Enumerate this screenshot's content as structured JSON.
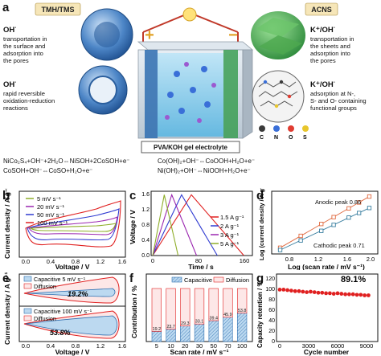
{
  "panel_a": {
    "letter": "a",
    "left_tag": "TMH/TMS",
    "right_tag": "ACNS",
    "left_top_ion": "OH",
    "left_top_text": [
      "transportation in",
      "the surface and",
      "adsorption into",
      "the pores"
    ],
    "left_bottom_ion": "OH",
    "left_bottom_text": [
      "rapid reversible",
      "oxidation-reduction",
      "reactions"
    ],
    "right_top_ion": "K⁺/OH",
    "right_top_text": [
      "transportation in",
      "the sheets and",
      "adsorption into",
      "the pores"
    ],
    "right_bottom_ion": "K⁺/OH",
    "right_bottom_text": [
      "adsorption at N-,",
      "S- and O- containing",
      "functional groups"
    ],
    "electrolyte_label": "PVA/KOH gel electrolyte",
    "plus_sign": "+",
    "minus_sign": "−",
    "element_legend": [
      "C",
      "N",
      "O",
      "S"
    ],
    "element_colors": [
      "#3a3a3a",
      "#3a6fd8",
      "#e03c31",
      "#e8c62c"
    ],
    "equations": [
      "NiCo₂S₄+OH⁻+2H₂O⇔NiSOH+2CoSOH+e⁻",
      "CoSOH+OH⁻⇔CoSO+H₂O+e⁻",
      "Co(OH)₂+OH⁻⇔CoOOH+H₂O+e⁻",
      "Ni(OH)₂+OH⁻⇔NiOOH+H₂O+e⁻"
    ]
  },
  "panel_b": {
    "letter": "b",
    "xlabel": "Voltage / V",
    "ylabel": "Current density / A g⁻¹",
    "xticks": [
      "0.0",
      "0.4",
      "0.8",
      "1.2",
      "1.6"
    ],
    "legend": [
      "5 mV s⁻¹",
      "20 mV s⁻¹",
      "50 mV s⁻¹",
      "100 mV s⁻¹"
    ]
  },
  "panel_c": {
    "letter": "c",
    "xlabel": "Time / s",
    "ylabel": "Voltage / V",
    "xticks": [
      "0",
      "80",
      "160"
    ],
    "yticks": [
      "0.0",
      "0.4",
      "0.8",
      "1.2",
      "1.6"
    ],
    "legend": [
      "1.5 A g⁻¹",
      "2 A g⁻¹",
      "3 A g⁻¹",
      "5 A g⁻¹"
    ]
  },
  "panel_d": {
    "letter": "d",
    "xlabel": "Log (scan rate / mV s⁻¹)",
    "ylabel": "Log (current density / A g⁻¹)",
    "xticks": [
      "0.8",
      "1.2",
      "1.6",
      "2.0"
    ],
    "anodic_label": "Anodic peak 0.86",
    "cathodic_label": "Cathodic peak 0.71"
  },
  "panel_e": {
    "letter": "e",
    "xlabel": "Voltage / V",
    "ylabel": "Current density / A g⁻¹",
    "xticks": [
      "0.0",
      "0.4",
      "0.8",
      "1.2",
      "1.6"
    ],
    "top_legend": [
      "Capacitive  5 mV s⁻¹",
      "Diffusion"
    ],
    "top_percent": "19.2%",
    "bottom_legend": [
      "Capacitive  100 mV s⁻¹",
      "Diffusion"
    ],
    "bottom_percent": "53.8%"
  },
  "panel_f": {
    "letter": "f",
    "xlabel": "Scan rate / mV s⁻¹",
    "ylabel": "Contribution / %",
    "legend": [
      "Capacitive",
      "Diffusion"
    ]
  },
  "panel_g": {
    "letter": "g",
    "xlabel": "Cycle number",
    "ylabel": "Capacity retention / %",
    "xticks": [
      "0",
      "3000",
      "6000",
      "9000"
    ],
    "yticks": [
      "0",
      "20",
      "40",
      "60",
      "80",
      "100",
      "120"
    ],
    "annotation": "89.1%"
  },
  "chart_data": [
    {
      "type": "line",
      "panel": "f-bar-contribution",
      "categories": [
        "5",
        "10",
        "20",
        "30",
        "50",
        "70",
        "100"
      ],
      "series": [
        {
          "name": "Capacitive",
          "values": [
            19.2,
            23.7,
            29.3,
            33.1,
            39.4,
            45.9,
            53.8
          ]
        },
        {
          "name": "Diffusion",
          "values": [
            80.8,
            76.3,
            70.7,
            66.9,
            60.6,
            54.1,
            46.2
          ]
        }
      ],
      "value_labels": [
        "19.2",
        "23.7",
        "29.3",
        "33.1",
        "39.4",
        "45.9",
        "53.8"
      ],
      "ylim": [
        0,
        100
      ]
    },
    {
      "type": "line",
      "panel": "c-gcd",
      "series": [
        {
          "name": "1.5 A g⁻¹",
          "x": [
            0,
            67,
            158
          ],
          "y": [
            0,
            1.6,
            0
          ]
        },
        {
          "name": "2 A g⁻¹",
          "x": [
            0,
            50,
            112
          ],
          "y": [
            0,
            1.6,
            0
          ]
        },
        {
          "name": "3 A g⁻¹",
          "x": [
            0,
            33,
            76
          ],
          "y": [
            0,
            1.6,
            0
          ]
        },
        {
          "name": "5 A g⁻¹",
          "x": [
            0,
            20,
            44
          ],
          "y": [
            0,
            1.6,
            0
          ]
        }
      ],
      "xlim": [
        0,
        170
      ],
      "ylim": [
        0,
        1.65
      ]
    },
    {
      "type": "scatter",
      "panel": "d-log",
      "series": [
        {
          "name": "Anodic peak 0.86",
          "x": [
            0.7,
            1.0,
            1.3,
            1.48,
            1.7,
            1.85,
            2.0
          ],
          "y": [
            0.0,
            0.26,
            0.52,
            0.67,
            0.86,
            0.99,
            1.12
          ]
        },
        {
          "name": "Cathodic peak 0.71",
          "x": [
            0.7,
            1.0,
            1.3,
            1.48,
            1.7,
            1.85,
            2.0
          ],
          "y": [
            -0.05,
            0.16,
            0.37,
            0.5,
            0.66,
            0.76,
            0.87
          ]
        }
      ],
      "xlim": [
        0.6,
        2.1
      ],
      "ylim": [
        -0.1,
        1.2
      ]
    },
    {
      "type": "scatter",
      "panel": "g-cycle",
      "series": [
        {
          "name": "",
          "x": [
            0,
            400,
            800,
            1200,
            1600,
            2000,
            2400,
            2800,
            3200,
            3600,
            4000,
            4400,
            4800,
            5200,
            5600,
            6000,
            6400,
            6800,
            7200,
            7600,
            8000,
            8400,
            8800,
            9200
          ],
          "y": [
            100,
            100,
            99,
            98,
            97,
            97,
            96,
            95,
            96,
            95,
            94,
            94,
            93,
            93,
            92,
            93,
            92,
            91,
            91,
            91,
            90,
            90,
            89,
            89
          ]
        }
      ],
      "xlim": [
        0,
        10000
      ],
      "ylim": [
        0,
        130
      ]
    }
  ]
}
